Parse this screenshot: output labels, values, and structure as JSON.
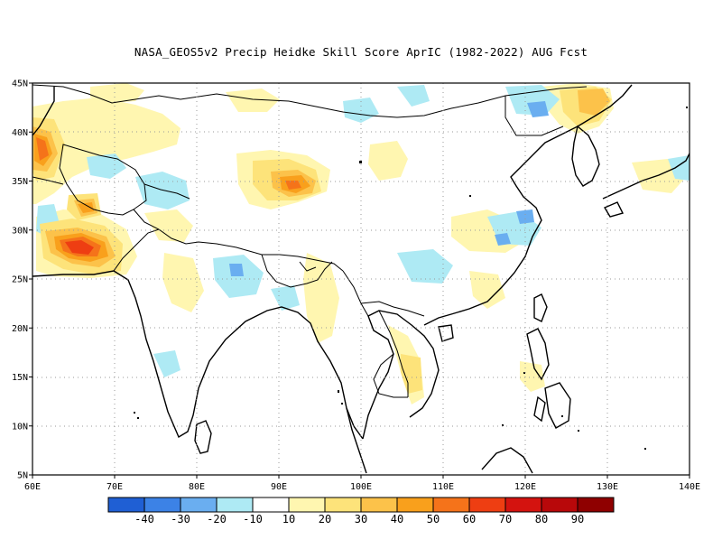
{
  "title": "NASA_GEOS5v2 Precip Heidke Skill Score AprIC (1982-2022) AUG Fcst",
  "map": {
    "lon_range": [
      60,
      140
    ],
    "lat_range": [
      5,
      45
    ],
    "lon_ticks": [
      "60E",
      "70E",
      "80E",
      "90E",
      "100E",
      "110E",
      "120E",
      "130E",
      "140E"
    ],
    "lat_ticks": [
      "5N",
      "10N",
      "15N",
      "20N",
      "25N",
      "30N",
      "35N",
      "40N",
      "45N"
    ],
    "grid": "dotted"
  },
  "colorbar": {
    "labels": [
      "-40",
      "-30",
      "-20",
      "-10",
      "10",
      "20",
      "30",
      "40",
      "50",
      "60",
      "70",
      "80",
      "90"
    ],
    "colors": [
      "#1f5fd4",
      "#3c82e6",
      "#6aaef0",
      "#aeeaf4",
      "#ffffff",
      "#fff6b0",
      "#fde37a",
      "#fcc24a",
      "#f9a01c",
      "#f5731a",
      "#ee3e12",
      "#d4130f",
      "#b8080a",
      "#8f0000"
    ]
  }
}
